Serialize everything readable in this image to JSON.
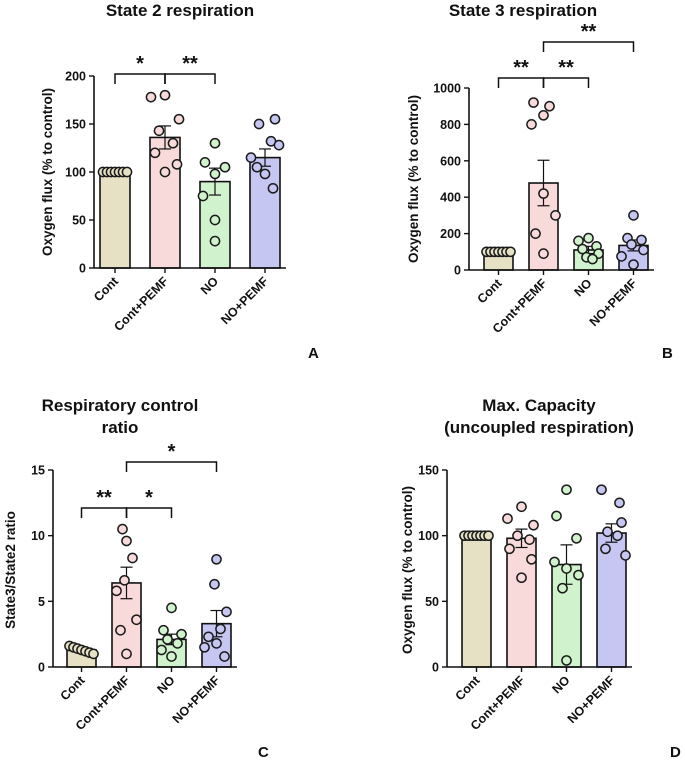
{
  "figure": {
    "panels": [
      {
        "letter": "A",
        "title_lines": [
          "State 2 respiration"
        ]
      },
      {
        "letter": "B",
        "title_lines": [
          "State 3 respiration"
        ]
      },
      {
        "letter": "C",
        "title_lines": [
          "Respiratory control",
          "ratio"
        ]
      },
      {
        "letter": "D",
        "title_lines": [
          "Max. Capacity",
          "(uncoupled respiration)"
        ]
      }
    ]
  },
  "colors": {
    "Cont": "#e6e0c4",
    "Cont+PEMF": "#f9dada",
    "NO": "#d0f2cc",
    "NO+PEMF": "#c6c6f2",
    "line": "#111111"
  },
  "chart_data": [
    {
      "type": "bar",
      "title": "State 2 respiration",
      "ylabel": "Oxygen flux (% to control)",
      "xlabel": "",
      "categories": [
        "Cont",
        "Cont+PEMF",
        "NO",
        "NO+PEMF"
      ],
      "values": [
        100,
        136,
        90,
        115
      ],
      "errors": [
        1,
        12,
        14,
        9
      ],
      "points": [
        [
          100,
          100,
          100,
          100,
          100,
          100,
          100
        ],
        [
          180,
          178,
          155,
          143,
          130,
          120,
          108,
          100
        ],
        [
          130,
          110,
          105,
          98,
          75,
          50,
          28
        ],
        [
          155,
          150,
          132,
          128,
          115,
          105,
          98,
          83
        ]
      ],
      "ylim": [
        0,
        200
      ],
      "yticks": [
        0,
        50,
        100,
        150,
        200
      ],
      "significance": [
        {
          "from": 0,
          "to": 1,
          "label": "*"
        },
        {
          "from": 1,
          "to": 2,
          "label": "**"
        }
      ]
    },
    {
      "type": "bar",
      "title": "State 3 respiration",
      "ylabel": "Oxygen flux (% to control)",
      "xlabel": "",
      "categories": [
        "Cont",
        "Cont+PEMF",
        "NO",
        "NO+PEMF"
      ],
      "values": [
        100,
        478,
        110,
        135
      ],
      "errors": [
        1,
        125,
        20,
        30
      ],
      "points": [
        [
          100,
          100,
          100,
          100,
          100,
          100,
          100
        ],
        [
          920,
          900,
          850,
          800,
          420,
          300,
          200,
          90
        ],
        [
          175,
          160,
          130,
          115,
          90,
          70,
          60
        ],
        [
          300,
          175,
          165,
          140,
          110,
          75,
          30
        ]
      ],
      "ylim": [
        0,
        1000
      ],
      "yticks": [
        0,
        200,
        400,
        600,
        800,
        1000
      ],
      "significance": [
        {
          "from": 0,
          "to": 1,
          "label": "**"
        },
        {
          "from": 1,
          "to": 2,
          "label": "**"
        },
        {
          "from": 1,
          "to": 3,
          "label": "**"
        }
      ]
    },
    {
      "type": "bar",
      "title": "Respiratory control ratio",
      "ylabel": "State3/State2 ratio",
      "xlabel": "",
      "categories": [
        "Cont",
        "Cont+PEMF",
        "NO",
        "NO+PEMF"
      ],
      "values": [
        1.3,
        6.4,
        2.1,
        3.3
      ],
      "errors": [
        0.1,
        1.2,
        0.4,
        1.0
      ],
      "points": [
        [
          1.6,
          1.5,
          1.4,
          1.3,
          1.2,
          1.1,
          1.0
        ],
        [
          10.5,
          9.6,
          8.3,
          6.6,
          5.8,
          3.6,
          2.8,
          1.0
        ],
        [
          4.5,
          2.8,
          2.5,
          2.1,
          1.8,
          1.3,
          0.8
        ],
        [
          8.2,
          6.3,
          4.2,
          2.9,
          2.3,
          1.8,
          1.5,
          0.8
        ]
      ],
      "ylim": [
        0,
        15
      ],
      "yticks": [
        0,
        5,
        10,
        15
      ],
      "significance": [
        {
          "from": 0,
          "to": 1,
          "label": "**"
        },
        {
          "from": 1,
          "to": 2,
          "label": "*"
        },
        {
          "from": 1,
          "to": 3,
          "label": "*"
        }
      ]
    },
    {
      "type": "bar",
      "title": "Max. Capacity (uncoupled respiration)",
      "ylabel": "Oxygen flux (% to control)",
      "xlabel": "",
      "categories": [
        "Cont",
        "Cont+PEMF",
        "NO",
        "NO+PEMF"
      ],
      "values": [
        100,
        98,
        78,
        102
      ],
      "errors": [
        1,
        7,
        15,
        7
      ],
      "points": [
        [
          100,
          100,
          100,
          100,
          100,
          100,
          100
        ],
        [
          122,
          113,
          108,
          100,
          97,
          90,
          82,
          68
        ],
        [
          135,
          115,
          98,
          80,
          75,
          70,
          60,
          5
        ],
        [
          135,
          125,
          110,
          103,
          100,
          90,
          85
        ]
      ],
      "ylim": [
        0,
        150
      ],
      "yticks": [
        0,
        50,
        100,
        150
      ],
      "significance": []
    }
  ]
}
